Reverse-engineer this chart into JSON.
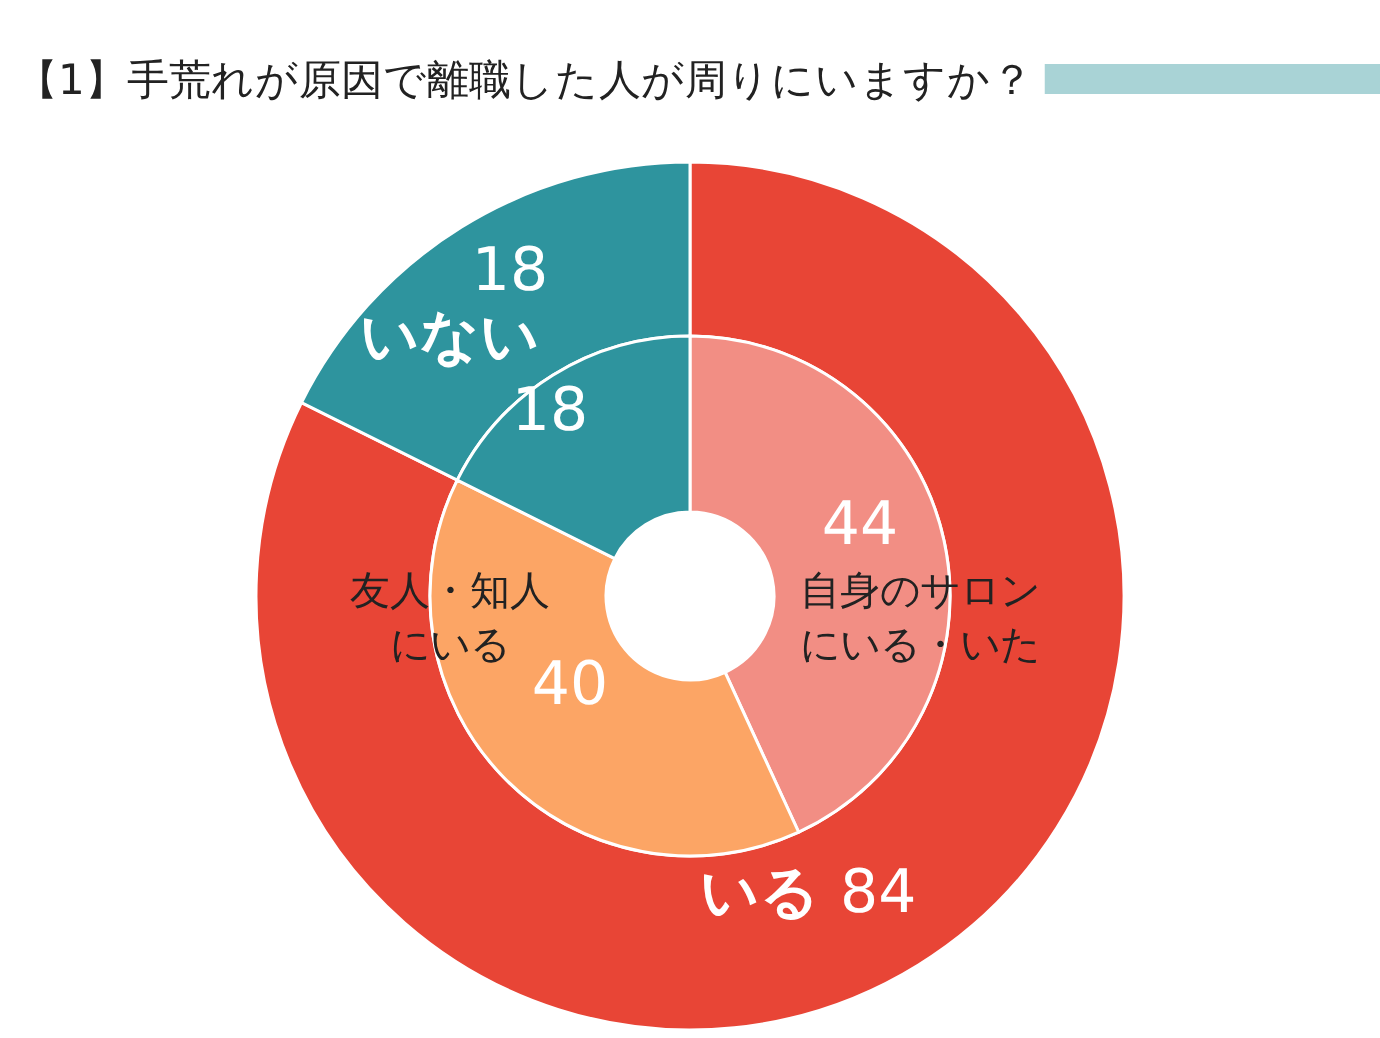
{
  "chart_data": [
    {
      "type": "donut",
      "title": "【1】手荒れが原因で離職した人が周りにいますか？",
      "categories": [
        "いる",
        "いない"
      ],
      "values": [
        84,
        18
      ],
      "colors": [
        "#e84536",
        "#2e949e"
      ],
      "data_labels": true
    },
    {
      "type": "donut",
      "categories": [
        "自身のサロンにいる・いた",
        "友人・知人にいる",
        null
      ],
      "values": [
        44,
        40,
        18
      ],
      "colors": [
        "#f28e84",
        "#fca565",
        "#2e949e"
      ],
      "data_labels": true
    }
  ]
}
